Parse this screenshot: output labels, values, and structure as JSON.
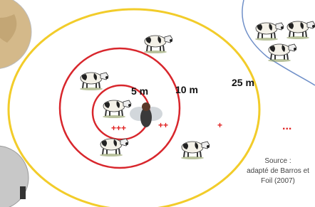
{
  "distances": [
    "5 m",
    "10 m",
    "25 m"
  ],
  "intensity": [
    "+++",
    "++",
    "+",
    "..."
  ],
  "source": [
    "Source :",
    "adapté de Barros et",
    "Foil (2007)"
  ]
}
